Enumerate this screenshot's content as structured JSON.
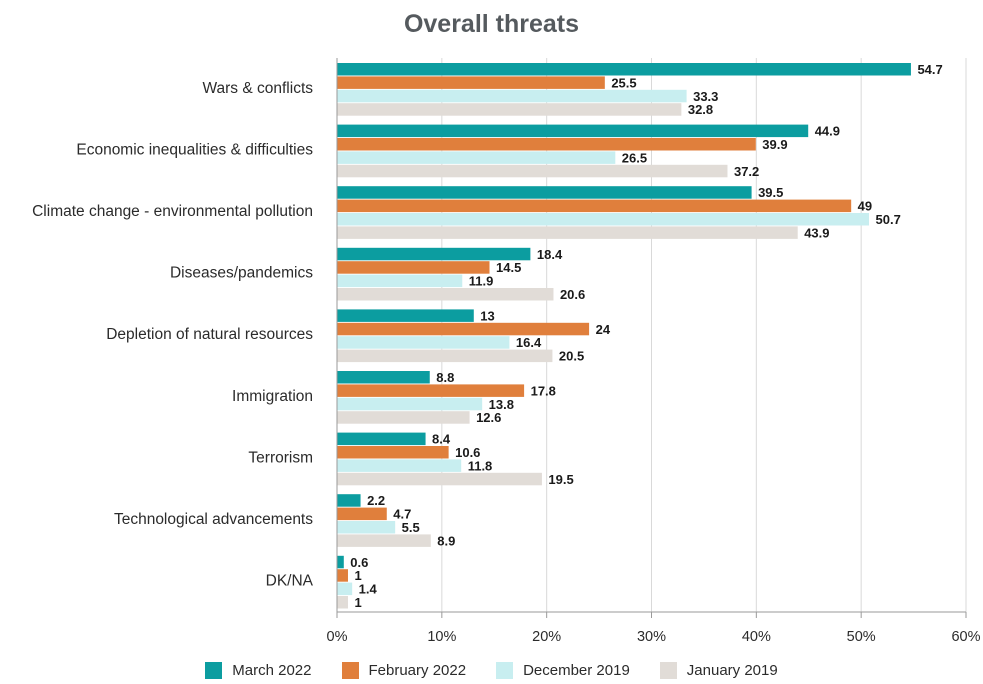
{
  "chart_data": {
    "type": "bar",
    "orientation": "horizontal",
    "title": "Overall threats",
    "categories": [
      "Wars & conflicts",
      "Economic inequalities & difficulties",
      "Climate change - environmental pollution",
      "Diseases/pandemics",
      "Depletion of natural resources",
      "Immigration",
      "Terrorism",
      "Technological advancements",
      "DK/NA"
    ],
    "series": [
      {
        "name": "March 2022",
        "color": "#0c9da0",
        "values": [
          54.7,
          44.9,
          39.5,
          18.4,
          13,
          8.8,
          8.4,
          2.2,
          0.6
        ]
      },
      {
        "name": "February 2022",
        "color": "#e07f3c",
        "values": [
          25.5,
          39.9,
          49,
          14.5,
          24,
          17.8,
          10.6,
          4.7,
          1
        ]
      },
      {
        "name": "December 2019",
        "color": "#c8eef0",
        "values": [
          33.3,
          26.5,
          50.7,
          11.9,
          16.4,
          13.8,
          11.8,
          5.5,
          1.4
        ]
      },
      {
        "name": "January 2019",
        "color": "#e1dcd7",
        "values": [
          32.8,
          37.2,
          43.9,
          20.6,
          20.5,
          12.6,
          19.5,
          8.9,
          1
        ]
      }
    ],
    "xlim": [
      0,
      60
    ],
    "xticks": [
      "0%",
      "10%",
      "20%",
      "30%",
      "40%",
      "50%",
      "60%"
    ],
    "legend_position": "bottom"
  }
}
